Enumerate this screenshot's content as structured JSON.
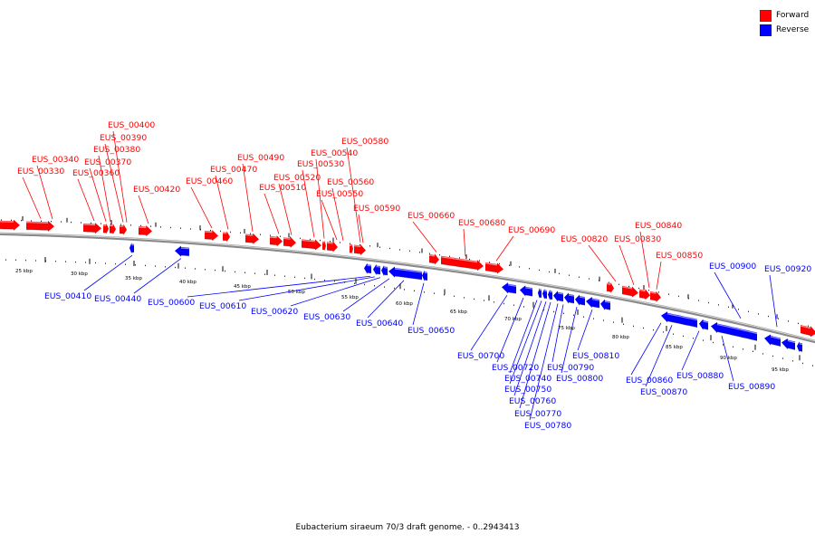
{
  "colors": {
    "forward": "#ff0000",
    "reverse": "#0000ff",
    "backbone": "#777777"
  },
  "legend": {
    "forward_label": "Forward",
    "reverse_label": "Reverse"
  },
  "caption": "Eubacterium siraeum 70/3 draft genome. - 0..2943413",
  "scale_labels": [
    "25 kbp",
    "30 kbp",
    "35 kbp",
    "40 kbp",
    "45 kbp",
    "50 kbp",
    "55 kbp",
    "60 kbp",
    "65 kbp",
    "70 kbp",
    "75 kbp",
    "80 kbp",
    "85 kbp",
    "90 kbp",
    "95 kbp"
  ],
  "forward_genes": [
    "EUS_00330",
    "EUS_00340",
    "EUS_00360",
    "EUS_00370",
    "EUS_00380",
    "EUS_00390",
    "EUS_00400",
    "EUS_00420",
    "EUS_00460",
    "EUS_00470",
    "EUS_00490",
    "EUS_00510",
    "EUS_00520",
    "EUS_00530",
    "EUS_00540",
    "EUS_00550",
    "EUS_00560",
    "EUS_00580",
    "EUS_00590",
    "EUS_00660",
    "EUS_00680",
    "EUS_00690",
    "EUS_00820",
    "EUS_00830",
    "EUS_00840",
    "EUS_00850"
  ],
  "reverse_genes": [
    "EUS_00410",
    "EUS_00440",
    "EUS_00600",
    "EUS_00610",
    "EUS_00620",
    "EUS_00630",
    "EUS_00640",
    "EUS_00650",
    "EUS_00700",
    "EUS_00720",
    "EUS_00740",
    "EUS_00750",
    "EUS_00760",
    "EUS_00770",
    "EUS_00780",
    "EUS_00790",
    "EUS_00800",
    "EUS_00810",
    "EUS_00860",
    "EUS_00870",
    "EUS_00880",
    "EUS_00890",
    "EUS_00900",
    "EUS_00920"
  ]
}
